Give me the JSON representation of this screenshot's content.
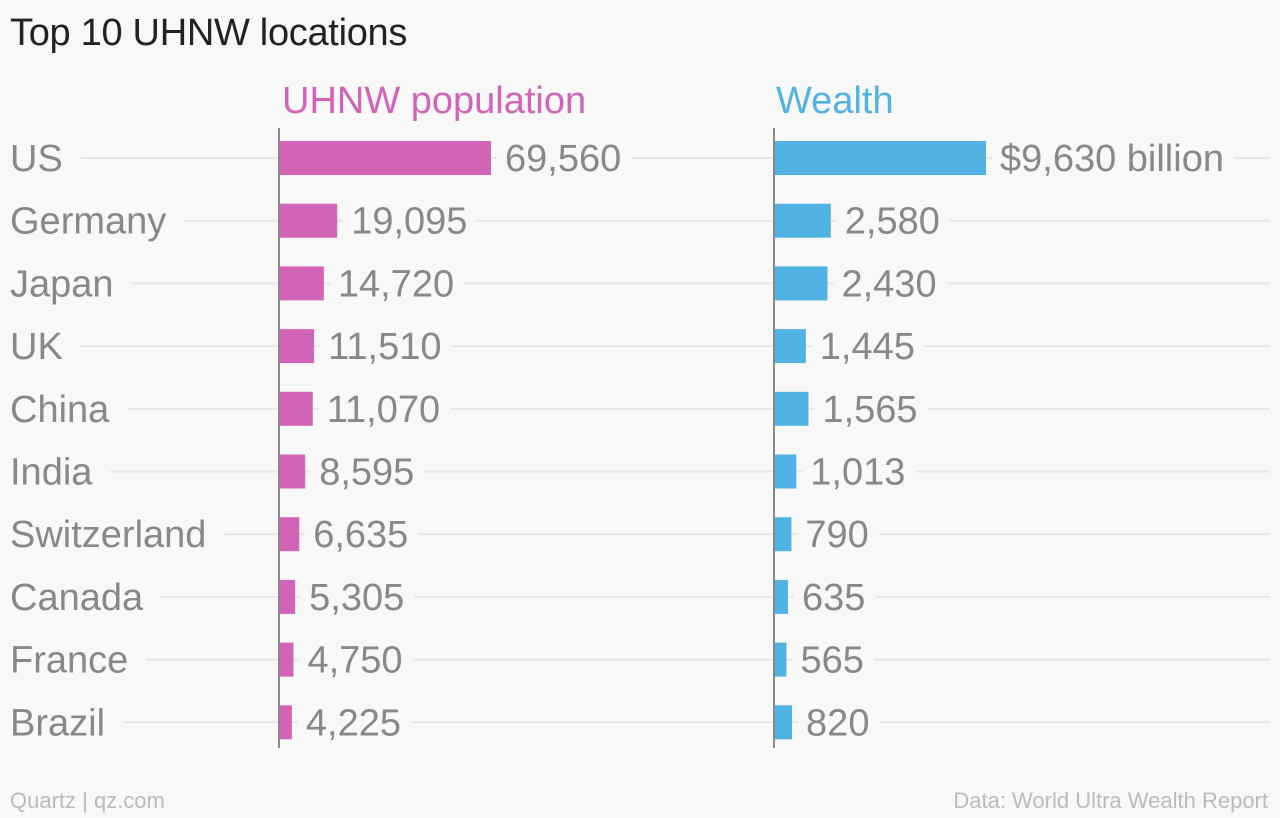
{
  "title": "Top 10 UHNW locations",
  "footer": {
    "credit": "Quartz | qz.com",
    "source": "Data: World Ultra Wealth Report"
  },
  "colors": {
    "population": "#d264b7",
    "wealth": "#51b2e4",
    "category_text": "#888888",
    "value_text": "#888888",
    "gridline": "#e6e6e6",
    "axis": "#888888"
  },
  "chart_data": {
    "type": "bar",
    "orientation": "horizontal",
    "title": "Top 10 UHNW locations",
    "categories": [
      "US",
      "Germany",
      "Japan",
      "UK",
      "China",
      "India",
      "Switzerland",
      "Canada",
      "France",
      "Brazil"
    ],
    "series": [
      {
        "name": "UHNW population",
        "values": [
          69560,
          19095,
          14720,
          11510,
          11070,
          8595,
          6635,
          5305,
          4750,
          4225
        ],
        "labels": [
          "69,560",
          "19,095",
          "14,720",
          "11,510",
          "11,070",
          "8,595",
          "6,635",
          "5,305",
          "4,750",
          "4,225"
        ]
      },
      {
        "name": "Wealth",
        "values": [
          9630,
          2580,
          2430,
          1445,
          1565,
          1013,
          790,
          635,
          565,
          820
        ],
        "labels": [
          "$9,630 billion",
          "2,580",
          "2,430",
          "1,445",
          "1,565",
          "1,013",
          "790",
          "635",
          "565",
          "820"
        ]
      }
    ],
    "grid": true,
    "legend": "series titles above each panel"
  }
}
